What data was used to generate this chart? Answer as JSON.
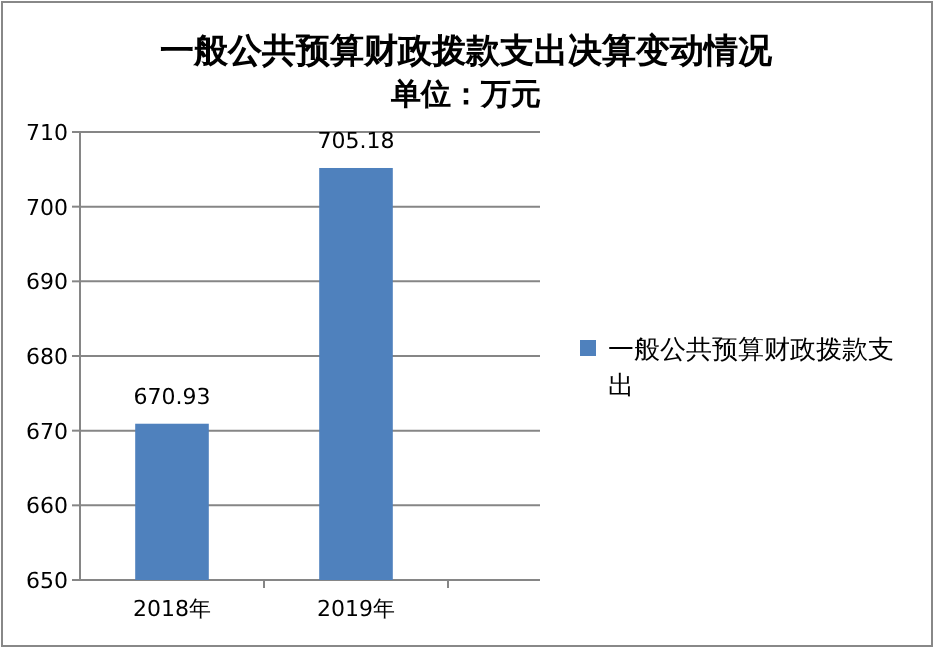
{
  "chart_data": {
    "type": "bar",
    "title": "一般公共预算财政拨款支出决算变动情况",
    "subtitle": "单位：万元",
    "categories": [
      "2018年",
      "2019年"
    ],
    "series": [
      {
        "name": "一般公共预算财政拨款支出",
        "color": "#4f81bd",
        "values": [
          670.93,
          705.18
        ]
      }
    ],
    "ylim": [
      650,
      710
    ],
    "yticks": [
      650,
      660,
      670,
      680,
      690,
      700,
      710
    ],
    "grid": "y",
    "legend": "right",
    "data_labels": true
  }
}
